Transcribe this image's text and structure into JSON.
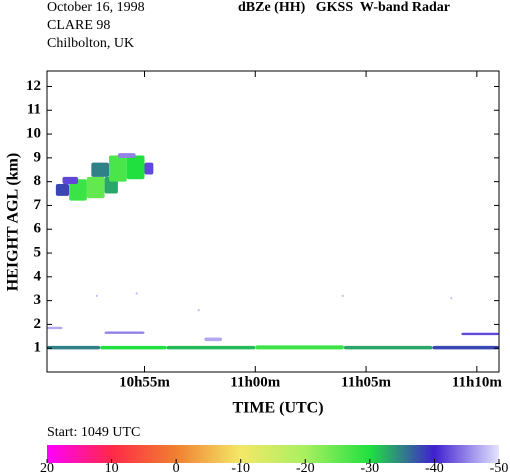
{
  "chart_data": {
    "type": "heatmap",
    "header": [
      "October 16, 1998",
      "CLARE 98",
      "Chilbolton, UK"
    ],
    "title": "dBZe (HH)   GKSS  W-band Radar",
    "xlabel": "TIME (UTC)",
    "ylabel": "HEIGHT AGL (km)",
    "xlim": [
      50.6,
      71.0
    ],
    "xticks": [
      {
        "value": 55,
        "label": "10h55m"
      },
      {
        "value": 60,
        "label": "11h00m"
      },
      {
        "value": 65,
        "label": "11h05m"
      },
      {
        "value": 70,
        "label": "11h10m"
      }
    ],
    "ylim": [
      0,
      12.65
    ],
    "yticks": [
      1,
      2,
      3,
      4,
      5,
      6,
      7,
      8,
      9,
      10,
      11,
      12
    ],
    "cells": [
      {
        "x": [
          51.0,
          51.6
        ],
        "y": [
          7.4,
          7.9
        ],
        "value": -38
      },
      {
        "x": [
          51.6,
          52.4
        ],
        "y": [
          7.2,
          8.1
        ],
        "value": -28
      },
      {
        "x": [
          52.4,
          53.2
        ],
        "y": [
          7.3,
          8.2
        ],
        "value": -25
      },
      {
        "x": [
          53.2,
          53.8
        ],
        "y": [
          7.5,
          8.2
        ],
        "value": -33
      },
      {
        "x": [
          51.3,
          52.0
        ],
        "y": [
          7.9,
          8.2
        ],
        "value": -42
      },
      {
        "x": [
          52.6,
          53.4
        ],
        "y": [
          8.2,
          8.8
        ],
        "value": -35
      },
      {
        "x": [
          53.4,
          54.2
        ],
        "y": [
          8.0,
          9.1
        ],
        "value": -27
      },
      {
        "x": [
          54.2,
          55.0
        ],
        "y": [
          8.1,
          9.1
        ],
        "value": -30
      },
      {
        "x": [
          55.0,
          55.4
        ],
        "y": [
          8.3,
          8.8
        ],
        "value": -42
      },
      {
        "x": [
          53.8,
          54.6
        ],
        "y": [
          9.0,
          9.2
        ],
        "value": -45
      },
      {
        "x": [
          50.6,
          53.0
        ],
        "y": [
          0.95,
          1.1
        ],
        "value": -35
      },
      {
        "x": [
          53.0,
          56.0
        ],
        "y": [
          0.95,
          1.1
        ],
        "value": -30
      },
      {
        "x": [
          56.0,
          60.0
        ],
        "y": [
          0.95,
          1.1
        ],
        "value": -32
      },
      {
        "x": [
          60.0,
          64.0
        ],
        "y": [
          0.95,
          1.12
        ],
        "value": -28
      },
      {
        "x": [
          64.0,
          68.0
        ],
        "y": [
          0.95,
          1.1
        ],
        "value": -33
      },
      {
        "x": [
          68.0,
          71.0
        ],
        "y": [
          0.95,
          1.1
        ],
        "value": -38
      },
      {
        "x": [
          53.2,
          55.0
        ],
        "y": [
          1.6,
          1.7
        ],
        "value": -45
      },
      {
        "x": [
          50.6,
          51.3
        ],
        "y": [
          1.8,
          1.9
        ],
        "value": -47
      },
      {
        "x": [
          69.3,
          71.0
        ],
        "y": [
          1.55,
          1.65
        ],
        "value": -42
      },
      {
        "x": [
          57.7,
          58.5
        ],
        "y": [
          1.3,
          1.45
        ],
        "value": -47
      },
      {
        "x": [
          52.8,
          52.9
        ],
        "y": [
          3.15,
          3.25
        ],
        "value": -48
      },
      {
        "x": [
          54.6,
          54.7
        ],
        "y": [
          3.25,
          3.35
        ],
        "value": -48
      },
      {
        "x": [
          57.4,
          57.5
        ],
        "y": [
          2.55,
          2.65
        ],
        "value": -48
      },
      {
        "x": [
          63.9,
          64.0
        ],
        "y": [
          3.15,
          3.25
        ],
        "value": -48
      },
      {
        "x": [
          68.8,
          68.9
        ],
        "y": [
          3.05,
          3.15
        ],
        "value": -48
      }
    ],
    "colorbar": {
      "label": "Start: 1049 UTC",
      "ticks": [
        20,
        10,
        0,
        -10,
        -20,
        -30,
        -40,
        -50
      ],
      "colors": [
        "#ff00ff",
        "#ff2848",
        "#f08030",
        "#f4e868",
        "#a8f060",
        "#20e040",
        "#4020d0",
        "#e4e4ff"
      ]
    }
  }
}
